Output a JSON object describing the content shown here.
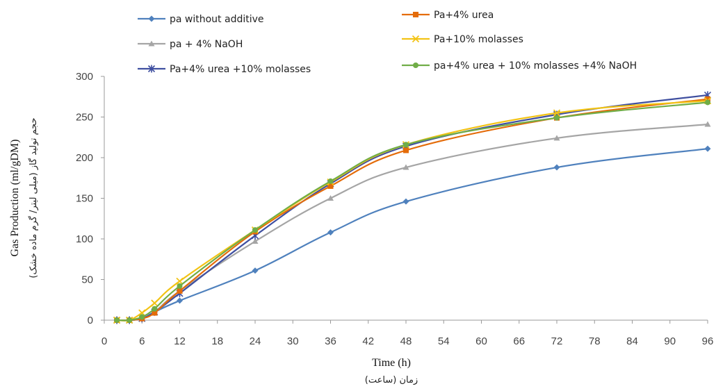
{
  "chart_data": {
    "type": "line",
    "xlabel": "Time (h)",
    "xlabel_sub": "زمان (ساعت)",
    "ylabel": "Gas Production (ml/gDM)",
    "ylabel_sub": "حجم تولید گاز (میلی لیتر/ گرم ماده خشک)",
    "xlim": [
      0,
      96
    ],
    "ylim": [
      0,
      300
    ],
    "xticks": [
      0,
      6,
      12,
      18,
      24,
      30,
      36,
      42,
      48,
      54,
      60,
      66,
      72,
      78,
      84,
      90,
      96
    ],
    "yticks": [
      0,
      50,
      100,
      150,
      200,
      250,
      300
    ],
    "x": [
      2,
      4,
      6,
      8,
      12,
      24,
      36,
      48,
      72,
      96
    ],
    "grid": false,
    "legend_position": "top",
    "series": [
      {
        "name": "pa without additive",
        "color": "#4F81BD",
        "marker": "diamond",
        "values": [
          0,
          0,
          2,
          10,
          24,
          61,
          108,
          146,
          188,
          211
        ]
      },
      {
        "name": "pa + 4% NaOH",
        "color": "#A5A5A5",
        "marker": "triangle",
        "values": [
          0,
          0,
          3,
          10,
          36,
          97,
          150,
          188,
          224,
          241
        ]
      },
      {
        "name": "Pa+4% urea +10% molasses",
        "color": "#3F4FA0",
        "marker": "asterisk",
        "values": [
          0,
          0,
          2,
          10,
          33,
          104,
          168,
          214,
          253,
          277
        ]
      },
      {
        "name": "Pa+4% urea",
        "color": "#E46C0A",
        "marker": "square",
        "values": [
          0,
          0,
          2,
          9,
          36,
          109,
          165,
          209,
          249,
          272
        ]
      },
      {
        "name": "Pa+10% molasses",
        "color": "#F2C314",
        "marker": "x",
        "values": [
          0,
          0,
          9,
          21,
          48,
          111,
          170,
          216,
          255,
          270
        ]
      },
      {
        "name": "pa+4% urea + 10% molasses +4% NaOH",
        "color": "#70AD47",
        "marker": "circle",
        "values": [
          0,
          0,
          4,
          14,
          42,
          111,
          171,
          216,
          249,
          268
        ]
      }
    ]
  }
}
